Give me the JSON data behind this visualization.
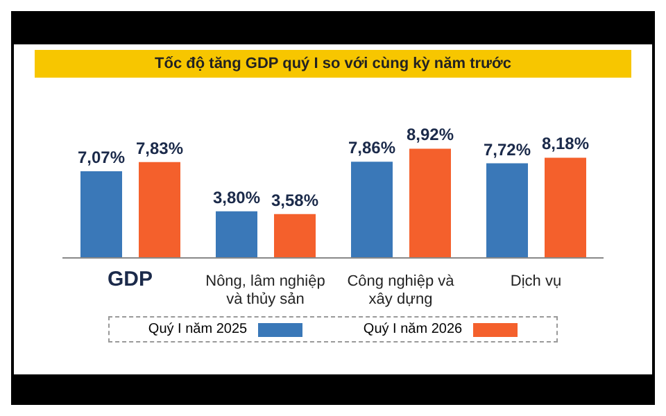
{
  "chart_data": {
    "type": "bar",
    "title": "Tốc độ tăng GDP quý I so với cùng kỳ năm trước",
    "categories": [
      "GDP",
      "Nông, lâm nghiệp và thủy sản",
      "Công nghiệp và xây dựng",
      "Dịch vụ"
    ],
    "series": [
      {
        "name": "Quý I năm 2025",
        "color": "#3a78b8",
        "values": [
          7.07,
          3.8,
          7.86,
          7.72
        ],
        "value_labels": [
          "7,07%",
          "3,80%",
          "7,86%",
          "7,72%"
        ]
      },
      {
        "name": "Quý I năm 2026",
        "color": "#f4602c",
        "values": [
          7.83,
          3.58,
          8.92,
          8.18
        ],
        "value_labels": [
          "7,83%",
          "3,58%",
          "8,92%",
          "8,18%"
        ]
      }
    ],
    "legend": "bottom",
    "grid": false
  }
}
